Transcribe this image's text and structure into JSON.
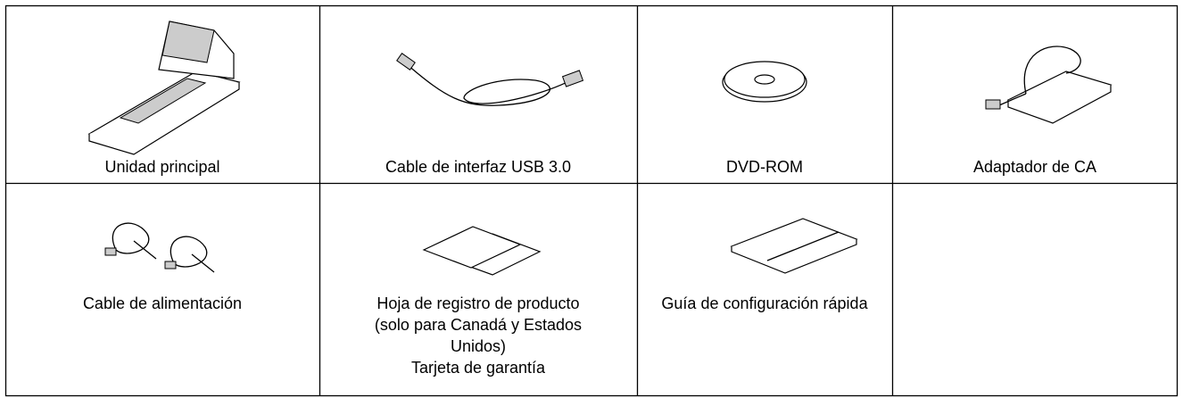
{
  "table": {
    "rows": [
      [
        {
          "label": "Unidad principal"
        },
        {
          "label": "Cable de interfaz USB 3.0"
        },
        {
          "label": "DVD-ROM"
        },
        {
          "label": "Adaptador de CA"
        }
      ],
      [
        {
          "lines": [
            "Cable de alimentación"
          ]
        },
        {
          "lines": [
            "Hoja de registro de producto",
            "(solo para Canadá y Estados",
            "Unidos)",
            "Tarjeta de garantía"
          ]
        },
        {
          "lines": [
            "Guía de configuración rápida"
          ]
        }
      ]
    ]
  }
}
